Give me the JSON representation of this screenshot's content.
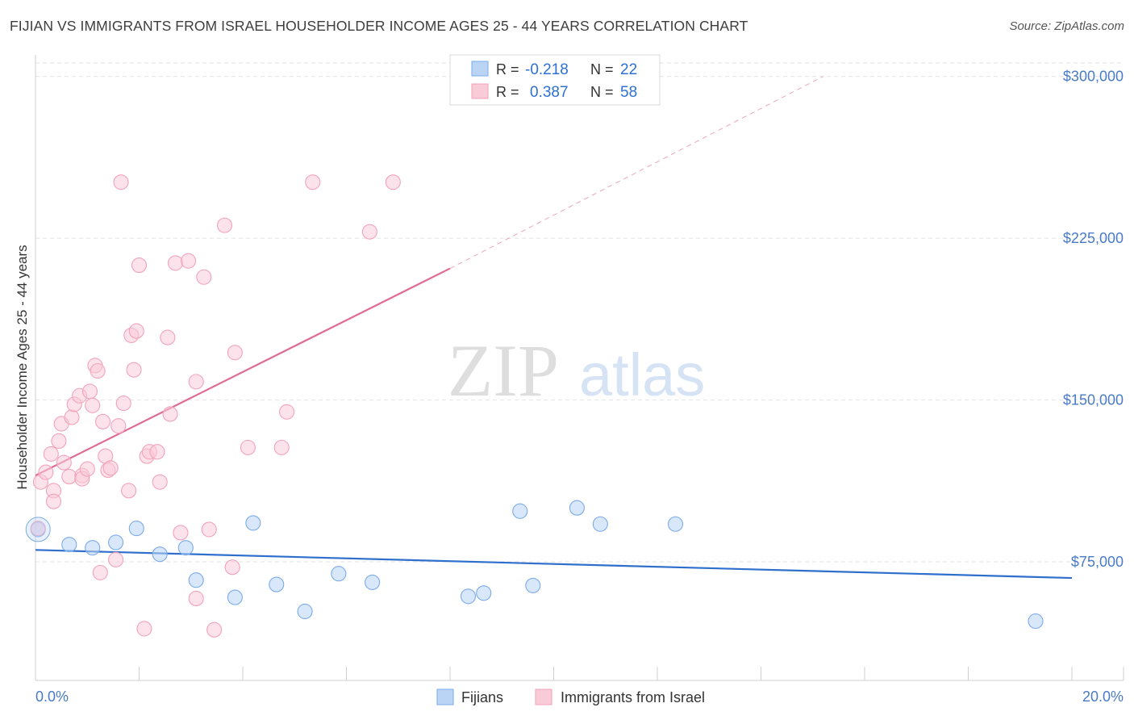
{
  "title": "FIJIAN VS IMMIGRANTS FROM ISRAEL HOUSEHOLDER INCOME AGES 25 - 44 YEARS CORRELATION CHART",
  "source": "Source: ZipAtlas.com",
  "watermark": {
    "zip": "ZIP",
    "atlas": "atlas"
  },
  "chart_data": {
    "type": "scatter",
    "ylabel": "Householder Income Ages 25 - 44 years",
    "xlim": [
      0,
      20
    ],
    "ylim": [
      20000,
      310000
    ],
    "x_tick_labels": {
      "left": "0.0%",
      "right": "20.0%"
    },
    "y_ticks": [
      {
        "value": 300000,
        "label": "$300,000"
      },
      {
        "value": 225000,
        "label": "$225,000"
      },
      {
        "value": 150000,
        "label": "$150,000"
      },
      {
        "value": 75000,
        "label": "$75,000"
      }
    ],
    "legend_stats": [
      {
        "r_label": "R =",
        "r": "-0.218",
        "n_label": "N =",
        "n": "22"
      },
      {
        "r_label": "R =",
        "r": "0.387",
        "n_label": "N =",
        "n": "58"
      }
    ],
    "series": [
      {
        "name": "Fijians",
        "color": "#7aabe8",
        "fill": "#b9d4f5",
        "line_color": "#2f6fcc",
        "trend": {
          "x0": 0,
          "y0": 80500,
          "x1": 20,
          "y1": 67500
        },
        "points": [
          [
            0.05,
            90000
          ],
          [
            0.65,
            83000
          ],
          [
            1.1,
            81500
          ],
          [
            1.55,
            84000
          ],
          [
            1.95,
            90500
          ],
          [
            2.4,
            78500
          ],
          [
            2.9,
            81500
          ],
          [
            3.1,
            66500
          ],
          [
            3.85,
            58500
          ],
          [
            4.2,
            93000
          ],
          [
            4.65,
            64500
          ],
          [
            5.2,
            52000
          ],
          [
            5.85,
            69500
          ],
          [
            6.5,
            65500
          ],
          [
            8.35,
            59000
          ],
          [
            8.65,
            60500
          ],
          [
            9.35,
            98500
          ],
          [
            9.6,
            64000
          ],
          [
            10.45,
            100000
          ],
          [
            10.9,
            92500
          ],
          [
            12.35,
            92500
          ],
          [
            19.3,
            47500
          ]
        ]
      },
      {
        "name": "Immigrants from Israel",
        "color": "#f2a3bb",
        "fill": "#f9cad8",
        "line_color": "#e06b92",
        "trend": {
          "x0": 0,
          "y0": 115000,
          "x1": 8.0,
          "y1": 211000
        },
        "trend_ext": {
          "x0": 8.0,
          "y0": 211000,
          "x1": 15.2,
          "y1": 300000
        },
        "points": [
          [
            0.1,
            112000
          ],
          [
            0.2,
            116500
          ],
          [
            0.35,
            108000
          ],
          [
            0.3,
            125000
          ],
          [
            0.35,
            103000
          ],
          [
            0.45,
            131000
          ],
          [
            0.5,
            139000
          ],
          [
            0.55,
            121000
          ],
          [
            0.65,
            114500
          ],
          [
            0.7,
            142000
          ],
          [
            0.75,
            148000
          ],
          [
            0.85,
            152000
          ],
          [
            0.9,
            115000
          ],
          [
            0.9,
            113500
          ],
          [
            1.0,
            118000
          ],
          [
            1.05,
            154000
          ],
          [
            1.1,
            147500
          ],
          [
            1.15,
            166000
          ],
          [
            1.2,
            163500
          ],
          [
            1.3,
            140000
          ],
          [
            1.35,
            124000
          ],
          [
            1.4,
            117500
          ],
          [
            1.45,
            118500
          ],
          [
            1.55,
            76000
          ],
          [
            1.6,
            138000
          ],
          [
            1.65,
            251000
          ],
          [
            1.7,
            148500
          ],
          [
            1.8,
            108000
          ],
          [
            1.85,
            180000
          ],
          [
            1.9,
            164000
          ],
          [
            1.95,
            182000
          ],
          [
            2.0,
            212500
          ],
          [
            2.1,
            44000
          ],
          [
            2.15,
            124000
          ],
          [
            2.2,
            126000
          ],
          [
            2.35,
            126000
          ],
          [
            2.4,
            112000
          ],
          [
            2.55,
            179000
          ],
          [
            2.6,
            143500
          ],
          [
            2.7,
            213500
          ],
          [
            2.8,
            88500
          ],
          [
            2.95,
            214500
          ],
          [
            3.1,
            158500
          ],
          [
            3.1,
            58000
          ],
          [
            3.25,
            207000
          ],
          [
            3.35,
            90000
          ],
          [
            3.45,
            43500
          ],
          [
            3.65,
            231000
          ],
          [
            3.8,
            72500
          ],
          [
            3.85,
            172000
          ],
          [
            4.1,
            128000
          ],
          [
            4.75,
            128000
          ],
          [
            4.85,
            144500
          ],
          [
            5.35,
            251000
          ],
          [
            6.45,
            228000
          ],
          [
            6.9,
            251000
          ],
          [
            1.25,
            70000
          ],
          [
            0.05,
            90500
          ]
        ]
      }
    ]
  }
}
